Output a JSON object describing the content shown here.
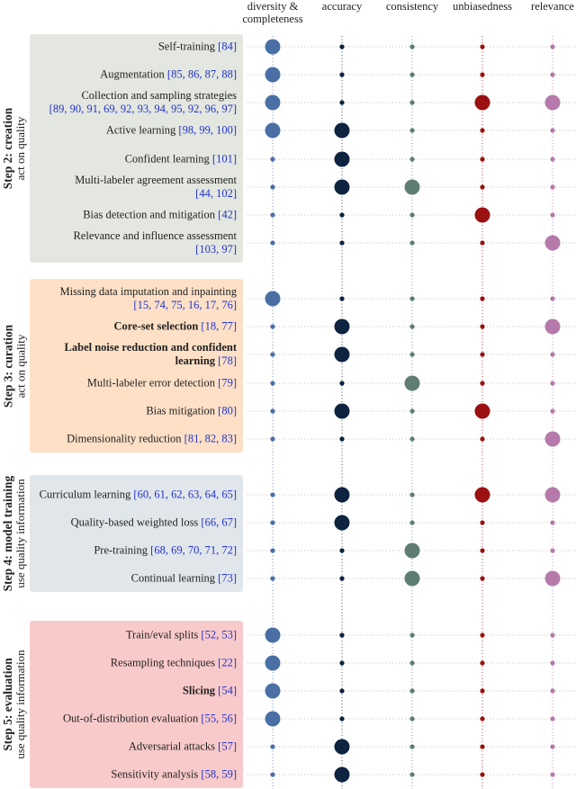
{
  "columns": [
    {
      "lines": [
        "diversity &",
        "completeness"
      ],
      "color": "#4a6fa5"
    },
    {
      "lines": [
        "accuracy"
      ],
      "color": "#0d2340"
    },
    {
      "lines": [
        "consistency"
      ],
      "color": "#5f7d72"
    },
    {
      "lines": [
        "unbiasedness"
      ],
      "color": "#9b1010"
    },
    {
      "lines": [
        "relevance"
      ],
      "color": "#b57aaa"
    }
  ],
  "steps": [
    {
      "title": "Step 2: creation",
      "subtitle": "act on quality",
      "color": "#e3e7df",
      "rows": [
        {
          "label": "Self-training",
          "refs": "[84]",
          "dots": [
            true,
            false,
            false,
            false,
            false
          ]
        },
        {
          "label": "Augmentation",
          "refs": "[85, 86, 87, 88]",
          "dots": [
            true,
            false,
            false,
            false,
            false
          ]
        },
        {
          "label": "Collection and sampling strategies",
          "refs": "[89, 90, 91, 69, 92, 93, 94, 95, 92, 96, 97]",
          "dots": [
            true,
            false,
            false,
            true,
            true
          ]
        },
        {
          "label": "Active learning",
          "refs": "[98, 99, 100]",
          "dots": [
            true,
            true,
            false,
            false,
            false
          ]
        },
        {
          "label": "Confident learning",
          "refs": "[101]",
          "dots": [
            false,
            true,
            false,
            false,
            false
          ]
        },
        {
          "label": "Multi-labeler agreement assessment",
          "refs": "[44, 102]",
          "dots": [
            false,
            true,
            true,
            false,
            false
          ]
        },
        {
          "label": "Bias detection and mitigation",
          "refs": "[42]",
          "dots": [
            false,
            false,
            false,
            true,
            false
          ]
        },
        {
          "label": "Relevance and influence assessment",
          "refs": "[103, 97]",
          "dots": [
            false,
            false,
            false,
            false,
            true
          ]
        }
      ]
    },
    {
      "title": "Step 3: curation",
      "subtitle": "act on quality",
      "color": "#fde0c6",
      "rows": [
        {
          "label": "Missing data imputation and inpainting",
          "refs": "[15, 74, 75, 16, 17, 76]",
          "dots": [
            true,
            false,
            false,
            false,
            false
          ]
        },
        {
          "label": "Core-set selection",
          "bold": true,
          "refs": "[18, 77]",
          "dots": [
            false,
            true,
            false,
            false,
            true
          ]
        },
        {
          "label": "Label noise reduction and confident learning",
          "bold": true,
          "refs": "[78]",
          "dots": [
            false,
            true,
            false,
            false,
            false
          ]
        },
        {
          "label": "Multi-labeler error detection",
          "refs": "[79]",
          "dots": [
            false,
            false,
            true,
            false,
            false
          ]
        },
        {
          "label": "Bias mitigation",
          "refs": "[80]",
          "dots": [
            false,
            true,
            false,
            true,
            false
          ]
        },
        {
          "label": "Dimensionality reduction",
          "refs": "[81, 82, 83]",
          "dots": [
            false,
            false,
            false,
            false,
            true
          ]
        }
      ]
    },
    {
      "title": "Step 4: model training",
      "subtitle": "use quality information",
      "color": "#e1e6ea",
      "rows": [
        {
          "label": "Curriculum learning",
          "refs": "[60, 61, 62, 63, 64, 65]",
          "dots": [
            false,
            true,
            false,
            true,
            true
          ]
        },
        {
          "label": "Quality-based weighted loss",
          "refs": "[66, 67]",
          "dots": [
            false,
            true,
            false,
            false,
            false
          ]
        },
        {
          "label": "Pre-training",
          "refs": "[68, 69, 70, 71, 72]",
          "dots": [
            false,
            false,
            true,
            false,
            false
          ]
        },
        {
          "label": "Continual learning",
          "refs": "[73]",
          "dots": [
            false,
            false,
            true,
            false,
            true
          ]
        }
      ]
    },
    {
      "title": "Step 5: evaluation",
      "subtitle": "use quality information",
      "color": "#f9caca",
      "rows": [
        {
          "label": "Train/eval splits",
          "refs": "[52, 53]",
          "dots": [
            true,
            false,
            false,
            false,
            false
          ]
        },
        {
          "label": "Resampling techniques",
          "refs": "[22]",
          "dots": [
            true,
            false,
            false,
            false,
            false
          ]
        },
        {
          "label": "Slicing",
          "bold": true,
          "refs": "[54]",
          "dots": [
            true,
            false,
            false,
            false,
            false
          ]
        },
        {
          "label": "Out-of-distribution evaluation",
          "refs": "[55, 56]",
          "dots": [
            true,
            false,
            false,
            false,
            false
          ]
        },
        {
          "label": "Adversarial attacks",
          "refs": "[57]",
          "dots": [
            false,
            true,
            false,
            false,
            false
          ]
        },
        {
          "label": "Sensitivity analysis",
          "refs": "[58, 59]",
          "dots": [
            false,
            true,
            false,
            false,
            false
          ]
        }
      ]
    }
  ]
}
